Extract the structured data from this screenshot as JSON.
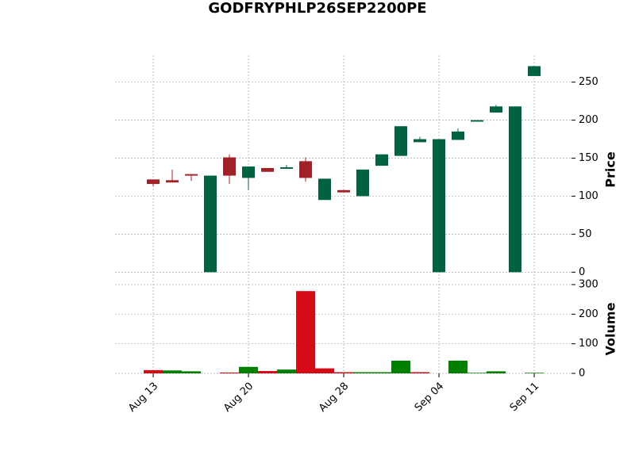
{
  "chart_data": {
    "type": "candlestick",
    "title": "GODFRYPHLP26SEP2200PE",
    "ylabel": "Price",
    "y2label": "Volume",
    "categories": [
      "Aug 13",
      null,
      null,
      null,
      null,
      "Aug 20",
      null,
      null,
      null,
      null,
      "Aug 28",
      null,
      null,
      null,
      null,
      "Sep 04",
      null,
      null,
      null,
      null,
      "Sep 11"
    ],
    "open": [
      122,
      121,
      129,
      0,
      151,
      124,
      137,
      136,
      146,
      95,
      108,
      100,
      140,
      153,
      171,
      0,
      174,
      198,
      210,
      0,
      258
    ],
    "high": [
      122,
      135,
      129,
      127,
      155,
      139,
      137,
      141,
      151,
      123,
      108,
      135,
      155,
      192,
      178,
      175,
      189,
      200,
      220,
      218,
      271
    ],
    "low": [
      113,
      118,
      120,
      0,
      116,
      108,
      132,
      136,
      119,
      95,
      105,
      100,
      140,
      153,
      171,
      0,
      174,
      198,
      210,
      0,
      258
    ],
    "close": [
      116,
      118,
      127,
      127,
      127,
      139,
      132,
      138,
      124,
      123,
      105,
      135,
      155,
      192,
      175,
      175,
      185,
      200,
      218,
      218,
      271
    ],
    "volume": [
      11,
      10,
      7,
      0,
      3,
      22,
      8,
      13,
      278,
      17,
      4,
      4,
      4,
      43,
      4,
      0,
      43,
      2,
      7,
      0,
      2
    ],
    "volume_colors": [
      "#d50b15",
      "#007f00",
      "#007f00",
      "#007f00",
      "#d50b15",
      "#007f00",
      "#d50b15",
      "#007f00",
      "#d50b15",
      "#d50b15",
      "#d50b15",
      "#007f00",
      "#007f00",
      "#007f00",
      "#d50b15",
      "#007f00",
      "#007f00",
      "#007f00",
      "#007f00",
      "#007f00",
      "#007f00"
    ],
    "up_color": "#006340",
    "down_color": "#a02128",
    "ylim": [
      -9,
      285
    ],
    "yticks": [
      0,
      50,
      100,
      150,
      200,
      250
    ],
    "y2lim": [
      0,
      300
    ],
    "y2ticks": [
      0,
      100,
      200,
      300
    ],
    "grid": true
  }
}
